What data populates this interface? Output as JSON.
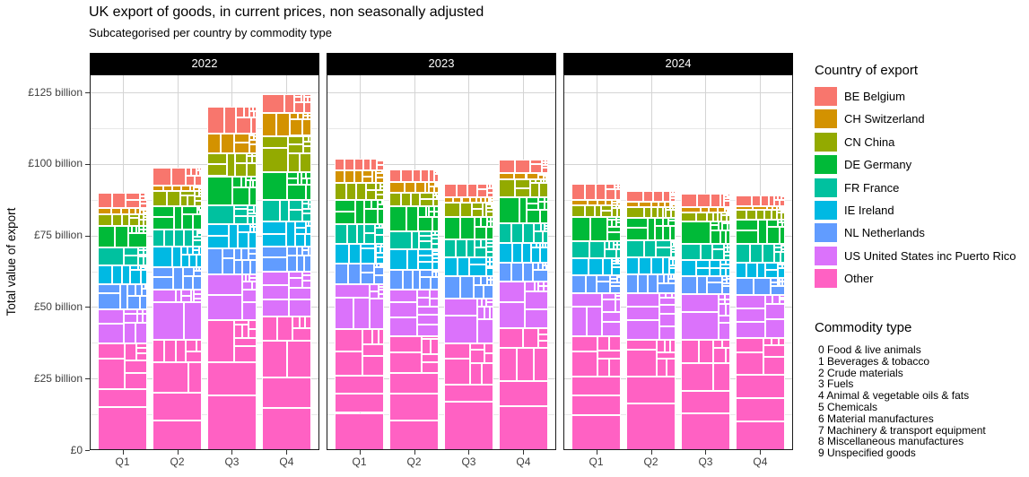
{
  "title": "UK export of goods, in current prices, non seasonally adjusted",
  "subtitle": "Subcategorised per country by commodity type",
  "y_axis": {
    "label": "Total value of export",
    "ticks": [
      {
        "value": 0,
        "label": "£0"
      },
      {
        "value": 25,
        "label": "£25 billion"
      },
      {
        "value": 50,
        "label": "£50 billion"
      },
      {
        "value": 75,
        "label": "£75 billion"
      },
      {
        "value": 100,
        "label": "£100 billion"
      },
      {
        "value": 125,
        "label": "£125 billion"
      }
    ]
  },
  "x_axis": {
    "categories": [
      "Q1",
      "Q2",
      "Q3",
      "Q4"
    ]
  },
  "legend": {
    "country_title": "Country of export",
    "commodity_title": "Commodity type",
    "commodities": [
      "0 Food & live animals",
      "1 Beverages & tobacco",
      "2 Crude materials",
      "3 Fuels",
      "4 Animal & vegetable oils & fats",
      "5 Chemicals",
      "6 Material manufactures",
      "7 Machinery & transport equipment",
      "8 Miscellaneous manufactures",
      "9 Unspecified goods"
    ]
  },
  "chart_data": {
    "type": "mosaic-stacked-bar",
    "title": "UK export of goods, in current prices, non seasonally adjusted",
    "subtitle": "Subcategorised per country by commodity type",
    "unit": "GBP billion",
    "ylabel": "Total value of export",
    "ylim": [
      0,
      131
    ],
    "grid": {
      "major_step": 25,
      "minor_step": 12.5
    },
    "legend_position": "right",
    "facets": [
      "2022",
      "2023",
      "2024"
    ],
    "categories": [
      "Q1",
      "Q2",
      "Q3",
      "Q4"
    ],
    "strip_bg": "#000000",
    "strip_text": "#ffffff",
    "countries": [
      {
        "code": "BE",
        "label": "BE Belgium",
        "color": "#F8766D"
      },
      {
        "code": "CH",
        "label": "CH Switzerland",
        "color": "#D39200"
      },
      {
        "code": "CN",
        "label": "CN China",
        "color": "#93AA00"
      },
      {
        "code": "DE",
        "label": "DE Germany",
        "color": "#00BA38"
      },
      {
        "code": "FR",
        "label": "FR France",
        "color": "#00C19F"
      },
      {
        "code": "IE",
        "label": "IE Ireland",
        "color": "#00B9E3"
      },
      {
        "code": "NL",
        "label": "NL Netherlands",
        "color": "#619CFF"
      },
      {
        "code": "US",
        "label": "US United States inc Puerto Rico",
        "color": "#DB72FB"
      },
      {
        "code": "Other",
        "label": "Other",
        "color": "#FF61C3"
      }
    ],
    "stack_order_bottom_to_top": [
      "Other",
      "US",
      "NL",
      "IE",
      "FR",
      "DE",
      "CN",
      "CH",
      "BE"
    ],
    "series": [
      {
        "year": "2022",
        "quarters": [
          {
            "quarter": "Q1",
            "total": 90.0,
            "values": {
              "BE": 5.5,
              "CH": 2.1,
              "CN": 4.2,
              "DE": 7.3,
              "FR": 6.3,
              "IE": 6.5,
              "NL": 8.9,
              "US": 11.8,
              "Other": 37.4
            }
          },
          {
            "quarter": "Q2",
            "total": 98.8,
            "values": {
              "BE": 6.5,
              "CH": 1.7,
              "CN": 5.4,
              "DE": 8.1,
              "FR": 6.1,
              "IE": 7.2,
              "NL": 7.8,
              "US": 17.6,
              "Other": 38.4
            }
          },
          {
            "quarter": "Q3",
            "total": 119.9,
            "values": {
              "BE": 9.4,
              "CH": 6.7,
              "CN": 8.1,
              "DE": 10.3,
              "FR": 6.5,
              "IE": 8.3,
              "NL": 9.2,
              "US": 15.9,
              "Other": 45.5
            }
          },
          {
            "quarter": "Q4",
            "total": 124.4,
            "values": {
              "BE": 6.6,
              "CH": 8.0,
              "CN": 12.6,
              "DE": 9.9,
              "FR": 7.5,
              "IE": 8.7,
              "NL": 8.7,
              "US": 15.8,
              "Other": 46.6
            }
          }
        ]
      },
      {
        "year": "2023",
        "quarters": [
          {
            "quarter": "Q1",
            "total": 101.9,
            "values": {
              "BE": 4.2,
              "CH": 4.3,
              "CN": 5.9,
              "DE": 8.6,
              "FR": 6.7,
              "IE": 7.0,
              "NL": 7.1,
              "US": 15.7,
              "Other": 42.4
            }
          },
          {
            "quarter": "Q2",
            "total": 98.1,
            "values": {
              "BE": 4.5,
              "CH": 3.7,
              "CN": 4.7,
              "DE": 8.9,
              "FR": 6.2,
              "IE": 7.0,
              "NL": 7.1,
              "US": 16.2,
              "Other": 39.8
            }
          },
          {
            "quarter": "Q3",
            "total": 93.0,
            "values": {
              "BE": 4.7,
              "CH": 1.8,
              "CN": 4.9,
              "DE": 7.9,
              "FR": 6.4,
              "IE": 6.6,
              "NL": 7.7,
              "US": 15.6,
              "Other": 37.4
            }
          },
          {
            "quarter": "Q4",
            "total": 101.4,
            "values": {
              "BE": 4.7,
              "CH": 2.1,
              "CN": 6.3,
              "DE": 9.1,
              "FR": 6.7,
              "IE": 7.1,
              "NL": 6.5,
              "US": 16.3,
              "Other": 42.6
            }
          }
        ]
      },
      {
        "year": "2024",
        "quarters": [
          {
            "quarter": "Q1",
            "total": 93.0,
            "values": {
              "BE": 5.5,
              "CH": 2.1,
              "CN": 3.8,
              "DE": 8.7,
              "FR": 6.0,
              "IE": 5.7,
              "NL": 6.5,
              "US": 14.9,
              "Other": 39.8
            }
          },
          {
            "quarter": "Q2",
            "total": 90.4,
            "values": {
              "BE": 3.6,
              "CH": 1.8,
              "CN": 3.8,
              "DE": 8.0,
              "FR": 5.7,
              "IE": 6.1,
              "NL": 6.5,
              "US": 16.5,
              "Other": 38.4
            }
          },
          {
            "quarter": "Q3",
            "total": 89.6,
            "values": {
              "BE": 4.6,
              "CH": 1.9,
              "CN": 3.1,
              "DE": 7.8,
              "FR": 5.8,
              "IE": 5.7,
              "NL": 6.3,
              "US": 16.0,
              "Other": 38.4
            }
          },
          {
            "quarter": "Q4",
            "total": 89.1,
            "values": {
              "BE": 3.9,
              "CH": 1.2,
              "CN": 3.5,
              "DE": 8.3,
              "FR": 6.6,
              "IE": 5.4,
              "NL": 6.1,
              "US": 14.8,
              "Other": 39.3
            }
          }
        ]
      }
    ]
  }
}
